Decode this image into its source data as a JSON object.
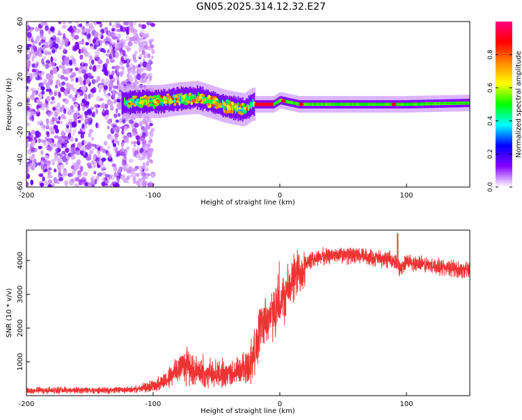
{
  "figure_title": "GN05.2025.314.12.32.E27",
  "chart_data": [
    {
      "type": "heatmap",
      "id": "spectrogram",
      "xlabel": "Height of straight line (km)",
      "ylabel": "Frequency (Hz)",
      "xlim": [
        -200,
        150
      ],
      "ylim": [
        -60,
        60
      ],
      "xticks": [
        -200,
        -100,
        0,
        100
      ],
      "yticks": [
        -60,
        -40,
        -20,
        0,
        20,
        40,
        60
      ],
      "colorbar": {
        "label": "Normalized spectral amplitude",
        "range": [
          0,
          1
        ],
        "ticks": [
          0.0,
          0.2,
          0.4,
          0.6,
          0.8
        ],
        "stops": [
          "#ffffff",
          "#8800ff",
          "#0000ff",
          "#00ffff",
          "#00ff00",
          "#ffff00",
          "#ff8800",
          "#ff0000",
          "#ff0080"
        ]
      },
      "noise_region_x": [
        -200,
        -112
      ],
      "signal_band": {
        "description_free": true,
        "center_freq_points": [
          [
            -125,
            1
          ],
          [
            -110,
            2
          ],
          [
            -95,
            2
          ],
          [
            -80,
            4
          ],
          [
            -65,
            5
          ],
          [
            -55,
            2
          ],
          [
            -45,
            -1
          ],
          [
            -35,
            -3
          ],
          [
            -28,
            -4
          ],
          [
            -22,
            0
          ],
          [
            -15,
            0
          ],
          [
            -5,
            0
          ],
          [
            0,
            3
          ],
          [
            5,
            2
          ],
          [
            15,
            0
          ],
          [
            50,
            0
          ],
          [
            100,
            0
          ],
          [
            150,
            1
          ]
        ],
        "strong_line_x": [
          -20,
          -5
        ],
        "strong_spots_x": [
          3,
          17,
          90
        ]
      }
    },
    {
      "type": "line",
      "id": "snr",
      "xlabel": "Height of straight line (km)",
      "ylabel": "SNR (10 * v/v)",
      "xlim": [
        -200,
        150
      ],
      "ylim": [
        0,
        4900
      ],
      "xticks": [
        -200,
        -100,
        0,
        100
      ],
      "yticks": [
        1000,
        2000,
        3000,
        4000
      ],
      "color": "#ee3333",
      "series": [
        {
          "name": "SNR",
          "x": [
            -200,
            -180,
            -160,
            -140,
            -120,
            -110,
            -100,
            -90,
            -80,
            -75,
            -70,
            -60,
            -50,
            -40,
            -30,
            -25,
            -20,
            -15,
            -10,
            -5,
            0,
            5,
            10,
            20,
            30,
            40,
            50,
            60,
            70,
            80,
            90,
            95,
            100,
            110,
            120,
            130,
            140,
            150
          ],
          "y": [
            150,
            160,
            160,
            160,
            170,
            200,
            300,
            450,
            800,
            1000,
            750,
            650,
            650,
            650,
            750,
            900,
            1250,
            2100,
            2300,
            2400,
            2700,
            3000,
            3400,
            3900,
            4100,
            4150,
            4150,
            4150,
            4100,
            4050,
            4000,
            3800,
            3950,
            3900,
            3850,
            3800,
            3750,
            3700
          ]
        }
      ]
    }
  ]
}
